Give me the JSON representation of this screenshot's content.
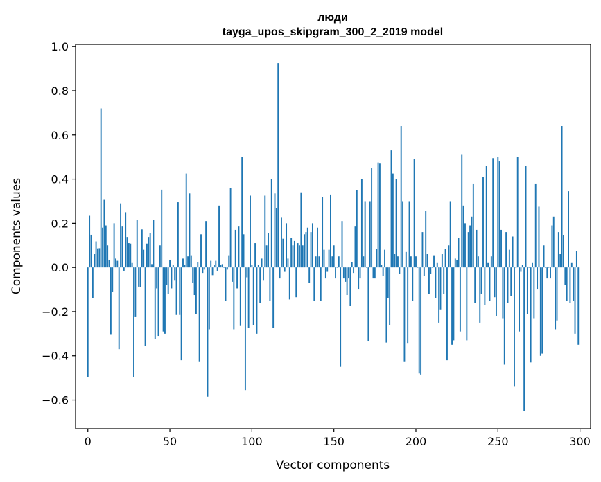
{
  "chart_data": {
    "type": "bar",
    "title_line1": "люди",
    "title_line2": "tayga_upos_skipgram_300_2_2019 model",
    "xlabel": "Vector components",
    "ylabel": "Components values",
    "xlim": [
      -7.5,
      306.5
    ],
    "ylim": [
      -0.73,
      1.01
    ],
    "xticks": [
      0,
      50,
      100,
      150,
      200,
      250,
      300
    ],
    "xtick_labels": [
      "0",
      "50",
      "100",
      "150",
      "200",
      "250",
      "300"
    ],
    "yticks": [
      -0.6,
      -0.4,
      -0.2,
      0.0,
      0.2,
      0.4,
      0.6,
      0.8,
      1.0
    ],
    "ytick_labels": [
      "−0.6",
      "−0.4",
      "−0.2",
      "0.0",
      "0.2",
      "0.4",
      "0.6",
      "0.8",
      "1.0"
    ],
    "bar_color": "#1f77b4",
    "values": [
      -0.495,
      0.234,
      0.148,
      -0.14,
      0.06,
      0.118,
      0.086,
      0.087,
      0.72,
      0.18,
      0.306,
      0.19,
      0.1,
      0.035,
      -0.305,
      -0.11,
      0.2,
      0.04,
      0.03,
      -0.37,
      0.29,
      0.185,
      -0.015,
      0.25,
      0.138,
      0.11,
      0.108,
      0.02,
      -0.495,
      -0.225,
      0.215,
      -0.087,
      -0.09,
      0.172,
      0.08,
      -0.355,
      0.108,
      0.138,
      0.155,
      0.015,
      0.215,
      -0.325,
      -0.095,
      -0.31,
      0.1,
      0.352,
      -0.29,
      -0.3,
      -0.08,
      -0.12,
      0.035,
      -0.095,
      0.01,
      -0.06,
      -0.215,
      0.295,
      -0.215,
      -0.42,
      0.04,
      0.01,
      0.425,
      0.05,
      0.335,
      0.055,
      -0.07,
      -0.125,
      -0.21,
      0.025,
      -0.425,
      0.15,
      -0.025,
      -0.01,
      0.21,
      -0.585,
      -0.28,
      0.03,
      -0.035,
      0.01,
      0.03,
      -0.015,
      0.28,
      0.01,
      0.015,
      0.0,
      -0.15,
      -0.01,
      0.055,
      0.36,
      -0.065,
      -0.28,
      0.17,
      -0.095,
      0.185,
      -0.265,
      0.5,
      0.15,
      -0.555,
      -0.045,
      -0.275,
      0.325,
      0.01,
      -0.26,
      0.11,
      -0.3,
      0.01,
      -0.16,
      0.04,
      -0.06,
      0.325,
      0.1,
      0.155,
      -0.15,
      0.4,
      -0.275,
      0.335,
      0.27,
      0.925,
      -0.05,
      0.225,
      0.13,
      -0.02,
      0.2,
      0.04,
      -0.145,
      0.135,
      0.1,
      0.12,
      -0.135,
      0.11,
      0.1,
      0.34,
      0.1,
      0.15,
      0.16,
      0.18,
      -0.07,
      0.16,
      0.2,
      -0.15,
      0.05,
      0.18,
      0.05,
      -0.15,
      0.32,
      0.08,
      -0.05,
      -0.02,
      0.08,
      0.33,
      0.05,
      0.1,
      -0.05,
      0.0,
      0.05,
      -0.45,
      0.21,
      -0.05,
      -0.065,
      -0.125,
      -0.05,
      -0.175,
      0.025,
      -0.025,
      0.185,
      0.35,
      -0.1,
      -0.05,
      0.4,
      0.05,
      0.3,
      0.0,
      -0.335,
      0.3,
      0.45,
      -0.05,
      -0.05,
      0.085,
      0.475,
      0.47,
      0.01,
      -0.04,
      0.08,
      -0.34,
      -0.14,
      -0.26,
      0.53,
      0.425,
      0.06,
      0.4,
      0.05,
      -0.03,
      0.64,
      0.3,
      -0.425,
      0.07,
      -0.345,
      0.3,
      0.05,
      -0.15,
      0.49,
      0.05,
      0.0,
      -0.48,
      -0.485,
      0.16,
      -0.04,
      0.255,
      0.06,
      -0.12,
      -0.03,
      0.0,
      0.055,
      -0.14,
      0.02,
      -0.25,
      -0.19,
      0.06,
      -0.12,
      0.085,
      -0.42,
      0.1,
      0.3,
      -0.35,
      -0.33,
      0.04,
      0.035,
      0.135,
      -0.29,
      0.51,
      0.28,
      0.2,
      -0.33,
      0.16,
      0.19,
      0.23,
      0.38,
      -0.16,
      0.17,
      0.05,
      -0.25,
      -0.12,
      0.41,
      -0.17,
      0.46,
      0.02,
      -0.15,
      0.05,
      0.495,
      -0.135,
      -0.22,
      0.5,
      0.48,
      0.17,
      -0.23,
      -0.44,
      0.16,
      -0.16,
      0.08,
      -0.13,
      0.14,
      -0.54,
      0.0,
      0.5,
      -0.29,
      -0.02,
      0.01,
      -0.65,
      0.46,
      -0.21,
      0.0,
      -0.43,
      0.02,
      -0.23,
      0.38,
      -0.1,
      0.275,
      -0.4,
      -0.39,
      0.1,
      0.0,
      -0.05,
      0.0,
      -0.05,
      0.19,
      0.23,
      -0.28,
      -0.24,
      0.16,
      0.06,
      0.64,
      0.145,
      -0.08,
      -0.15,
      0.345,
      -0.16,
      0.02,
      -0.15,
      -0.3,
      0.075,
      -0.35
    ]
  }
}
